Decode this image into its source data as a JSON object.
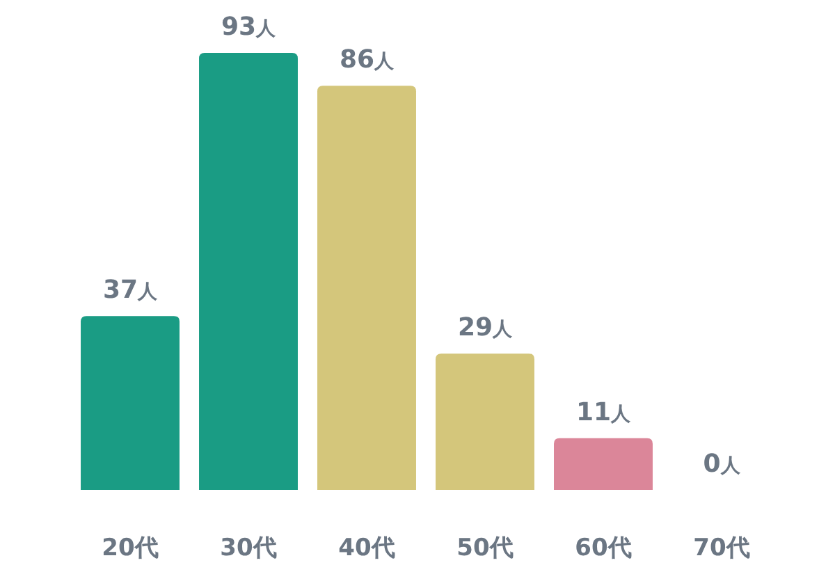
{
  "chart_data": {
    "type": "bar",
    "categories": [
      "20代",
      "30代",
      "40代",
      "50代",
      "60代",
      "70代"
    ],
    "values": [
      37,
      93,
      86,
      29,
      11,
      0
    ],
    "colors": [
      "#1a9c84",
      "#1a9c84",
      "#d4c67b",
      "#d4c67b",
      "#db8699",
      "#db8699"
    ],
    "value_labels": [
      "37人",
      "93人",
      "86人",
      "29人",
      "11人",
      "0人"
    ]
  }
}
